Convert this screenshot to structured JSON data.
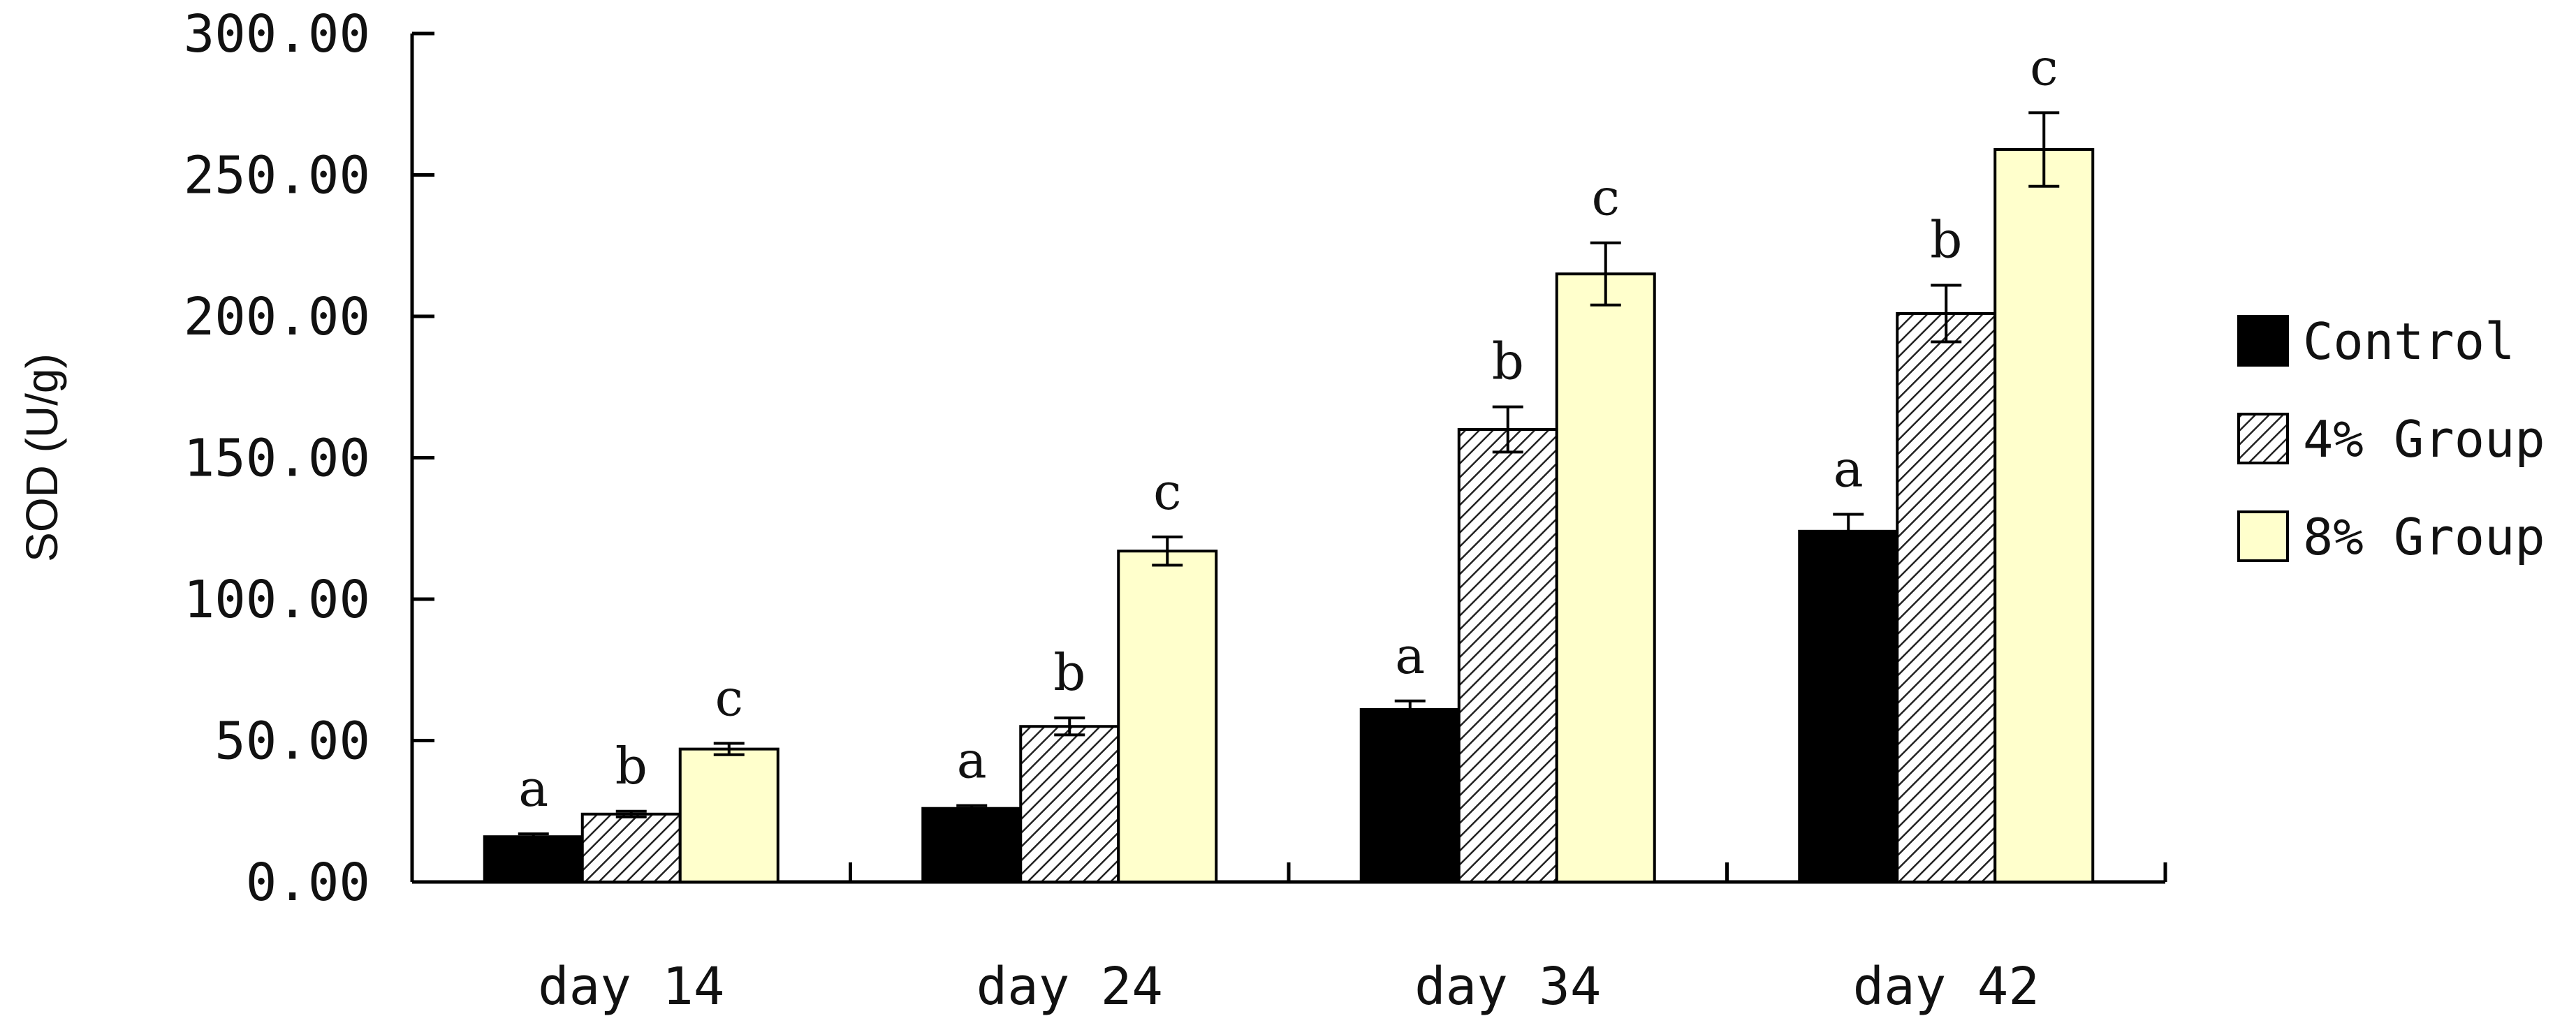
{
  "chart_data": {
    "type": "bar",
    "ylabel": "SOD (U/g)",
    "ylim": [
      0,
      300
    ],
    "yticks": [
      0,
      50,
      100,
      150,
      200,
      250,
      300
    ],
    "ytick_labels": [
      "0.00",
      "50.00",
      "100.00",
      "150.00",
      "200.00",
      "250.00",
      "300.00"
    ],
    "categories": [
      "day 14",
      "day 24",
      "day 34",
      "day 42"
    ],
    "legend_position": "right",
    "grid": false,
    "series": [
      {
        "name": "Control",
        "fill": "solid",
        "color": "#000000",
        "values": [
          16,
          26,
          61,
          124
        ],
        "errors": [
          1,
          1,
          3,
          6
        ],
        "letters": [
          "a",
          "a",
          "a",
          "a"
        ]
      },
      {
        "name": "4% Group",
        "fill": "hatched",
        "color": "#ffffff",
        "values": [
          24,
          55,
          160,
          201
        ],
        "errors": [
          1,
          3,
          8,
          10
        ],
        "letters": [
          "b",
          "b",
          "b",
          "b"
        ]
      },
      {
        "name": "8% Group",
        "fill": "solid",
        "color": "#ffffcc",
        "values": [
          47,
          117,
          215,
          259
        ],
        "errors": [
          2,
          5,
          11,
          13
        ],
        "letters": [
          "c",
          "c",
          "c",
          "c"
        ]
      }
    ]
  }
}
